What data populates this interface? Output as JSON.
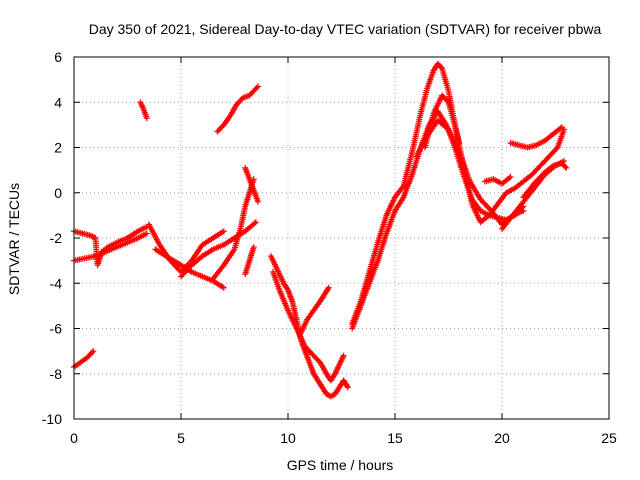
{
  "chart_data": {
    "type": "scatter",
    "title": "Day 350 of 2021, Sidereal Day-to-day VTEC variation (SDTVAR) for receiver pbwa",
    "xlabel": "GPS time / hours",
    "ylabel": "SDTVAR / TECUs",
    "xlim": [
      0,
      25
    ],
    "ylim": [
      -10,
      6
    ],
    "xticks": [
      0,
      5,
      10,
      15,
      20,
      25
    ],
    "yticks": [
      -10,
      -8,
      -6,
      -4,
      -2,
      0,
      2,
      4,
      6
    ],
    "grid": true,
    "marker": "+",
    "color": "#ff0000",
    "series": [
      {
        "name": "s1",
        "x": [
          0.0,
          0.3,
          0.6,
          0.9
        ],
        "y": [
          -7.7,
          -7.5,
          -7.3,
          -7.0
        ]
      },
      {
        "name": "s2",
        "x": [
          0.0,
          0.5,
          1.0,
          1.5,
          2.0,
          2.5,
          3.0,
          3.4
        ],
        "y": [
          -3.0,
          -2.9,
          -2.8,
          -2.6,
          -2.4,
          -2.2,
          -2.0,
          -1.8
        ]
      },
      {
        "name": "s3",
        "x": [
          0.0,
          0.4,
          0.8,
          1.0,
          1.1,
          1.3,
          1.6,
          2.0,
          2.5,
          3.0,
          3.4
        ],
        "y": [
          -1.7,
          -1.8,
          -1.9,
          -2.0,
          -3.2,
          -2.6,
          -2.4,
          -2.2,
          -2.0,
          -1.7,
          -1.5
        ]
      },
      {
        "name": "s4",
        "x": [
          3.5,
          4.0,
          4.5,
          5.0,
          5.5,
          6.0,
          6.5,
          7.0
        ],
        "y": [
          -1.4,
          -2.3,
          -3.0,
          -3.5,
          -3.0,
          -2.3,
          -2.0,
          -1.7
        ]
      },
      {
        "name": "s5",
        "x": [
          3.8,
          4.3,
          5.0,
          5.5,
          6.0,
          6.5,
          7.0
        ],
        "y": [
          -2.5,
          -2.8,
          -3.2,
          -3.5,
          -3.7,
          -3.9,
          -4.2
        ]
      },
      {
        "name": "s6",
        "x": [
          5.0,
          5.5,
          6.0,
          6.5,
          7.0,
          7.5,
          8.0,
          8.5
        ],
        "y": [
          -3.7,
          -3.2,
          -2.8,
          -2.5,
          -2.3,
          -2.0,
          -1.7,
          -1.3
        ]
      },
      {
        "name": "s7",
        "x": [
          6.5,
          7.0,
          7.5,
          7.8,
          8.0,
          8.2,
          8.4
        ],
        "y": [
          -3.8,
          -3.2,
          -2.5,
          -1.5,
          -0.6,
          0.0,
          0.6
        ]
      },
      {
        "name": "s8",
        "x": [
          8.0,
          8.2,
          8.4,
          8.6
        ],
        "y": [
          1.1,
          0.6,
          0.1,
          -0.4
        ]
      },
      {
        "name": "s9",
        "x": [
          8.0,
          8.2,
          8.4
        ],
        "y": [
          -3.6,
          -3.0,
          -2.4
        ]
      },
      {
        "name": "s10",
        "x": [
          3.1,
          3.25,
          3.4
        ],
        "y": [
          4.0,
          3.7,
          3.3
        ]
      },
      {
        "name": "s11",
        "x": [
          6.7,
          7.0,
          7.3,
          7.6,
          7.9,
          8.2,
          8.6
        ],
        "y": [
          2.7,
          3.0,
          3.4,
          3.9,
          4.2,
          4.3,
          4.7
        ]
      },
      {
        "name": "s12",
        "x": [
          9.2,
          9.5,
          9.8,
          10.0,
          10.2,
          10.4,
          10.6,
          10.8,
          11.0,
          11.2,
          11.4,
          11.6,
          11.8,
          12.0,
          12.2,
          12.4,
          12.6,
          12.8
        ],
        "y": [
          -2.8,
          -3.4,
          -4.0,
          -4.3,
          -4.8,
          -5.6,
          -6.5,
          -7.0,
          -7.5,
          -8.0,
          -8.3,
          -8.6,
          -8.9,
          -9.0,
          -8.9,
          -8.6,
          -8.3,
          -8.6
        ]
      },
      {
        "name": "s13",
        "x": [
          9.3,
          9.6,
          10.0,
          10.4,
          10.8,
          11.2,
          11.5,
          11.8,
          12.0,
          12.2,
          12.4,
          12.6
        ],
        "y": [
          -3.5,
          -4.3,
          -5.2,
          -6.0,
          -6.8,
          -7.2,
          -7.5,
          -8.0,
          -8.3,
          -8.0,
          -7.6,
          -7.2
        ]
      },
      {
        "name": "s14",
        "x": [
          10.6,
          10.9,
          11.2,
          11.5,
          11.7,
          11.9
        ],
        "y": [
          -6.2,
          -5.6,
          -5.2,
          -4.8,
          -4.5,
          -4.2
        ]
      },
      {
        "name": "s15",
        "x": [
          13.0,
          13.4,
          13.8,
          14.2,
          14.6,
          15.0,
          15.4,
          15.8,
          16.2,
          16.6,
          17.0,
          17.4,
          17.8,
          18.2,
          18.6,
          19.0,
          19.4,
          19.8,
          20.2,
          20.6,
          21.0
        ],
        "y": [
          -6.0,
          -5.0,
          -4.0,
          -3.0,
          -1.8,
          -0.8,
          -0.2,
          0.8,
          2.0,
          3.0,
          3.6,
          3.0,
          2.0,
          0.8,
          -0.3,
          -0.8,
          -1.0,
          -1.1,
          -1.2,
          -1.0,
          -0.6
        ]
      },
      {
        "name": "s16",
        "x": [
          13.0,
          13.4,
          13.8,
          14.2,
          14.6,
          15.0,
          15.4,
          15.8,
          16.2,
          16.5,
          16.8,
          17.0,
          17.2,
          17.5,
          17.8,
          18.2,
          18.6,
          19.0,
          19.4,
          19.8,
          20.2,
          20.6,
          21.0,
          21.4,
          21.8,
          22.2,
          22.6,
          22.9
        ],
        "y": [
          -5.8,
          -4.8,
          -3.5,
          -2.2,
          -1.0,
          -0.2,
          0.3,
          1.8,
          3.5,
          4.6,
          5.4,
          5.7,
          5.5,
          4.5,
          3.0,
          1.2,
          -0.5,
          -1.3,
          -1.0,
          -0.5,
          0.0,
          0.2,
          0.5,
          0.8,
          1.2,
          1.6,
          2.0,
          2.8
        ]
      },
      {
        "name": "s17",
        "x": [
          16.4,
          16.8,
          17.2,
          17.5,
          17.8,
          18.0
        ],
        "y": [
          2.0,
          3.5,
          4.3,
          4.0,
          3.0,
          2.2
        ]
      },
      {
        "name": "s18",
        "x": [
          16.0,
          16.5,
          17.0,
          17.5,
          18.0,
          18.5,
          19.0,
          19.5,
          20.0,
          20.5,
          21.0
        ],
        "y": [
          1.6,
          2.5,
          3.2,
          2.8,
          1.8,
          0.5,
          -0.3,
          -0.8,
          -1.4,
          -1.0,
          -0.8
        ]
      },
      {
        "name": "s19",
        "x": [
          19.2,
          19.6,
          20.0,
          20.4
        ],
        "y": [
          0.5,
          0.6,
          0.4,
          0.7
        ]
      },
      {
        "name": "s20",
        "x": [
          20.4,
          20.8,
          21.2,
          21.6,
          22.0,
          22.4,
          22.8
        ],
        "y": [
          2.2,
          2.1,
          2.0,
          2.1,
          2.3,
          2.6,
          2.9
        ]
      },
      {
        "name": "s21",
        "x": [
          21.0,
          21.5,
          22.0,
          22.4,
          22.8,
          23.0
        ],
        "y": [
          -0.2,
          0.4,
          0.9,
          1.2,
          1.3,
          1.1
        ]
      },
      {
        "name": "s22",
        "x": [
          20.0,
          20.5,
          21.0,
          21.5,
          22.0,
          22.5,
          22.9
        ],
        "y": [
          -1.6,
          -1.0,
          -0.4,
          0.2,
          0.8,
          1.2,
          1.4
        ]
      }
    ]
  }
}
